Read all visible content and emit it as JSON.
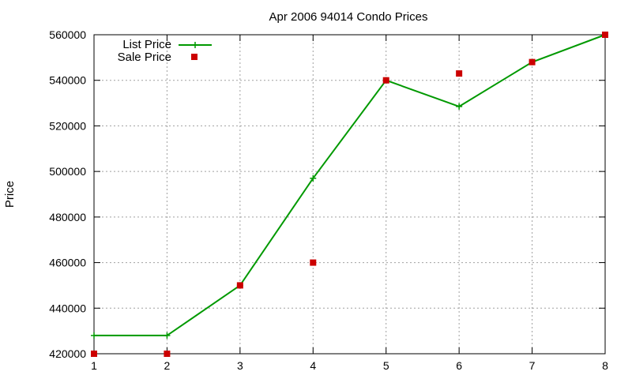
{
  "chart_data": {
    "type": "line",
    "title": "Apr 2006 94014 Condo Prices",
    "xlabel": "",
    "ylabel": "Price",
    "x": [
      1,
      2,
      3,
      4,
      5,
      6,
      7,
      8
    ],
    "xlim": [
      1,
      8
    ],
    "ylim": [
      420000,
      560000
    ],
    "xticks": [
      "1",
      "2",
      "3",
      "4",
      "5",
      "6",
      "7",
      "8"
    ],
    "yticks": [
      420000,
      440000,
      460000,
      480000,
      500000,
      520000,
      540000,
      560000
    ],
    "ytick_labels": [
      "420000",
      "440000",
      "460000",
      "480000",
      "500000",
      "520000",
      "540000",
      "560000"
    ],
    "grid": true,
    "legend_position": "top-left",
    "series": [
      {
        "name": "List Price",
        "style": "line+cross",
        "color": "#009900",
        "values": [
          428000,
          428000,
          450000,
          497000,
          540000,
          528500,
          548000,
          560000
        ]
      },
      {
        "name": "Sale Price",
        "style": "square-points",
        "color": "#cc0000",
        "values": [
          420000,
          420000,
          450000,
          460000,
          540000,
          543000,
          548000,
          560000
        ]
      }
    ]
  }
}
